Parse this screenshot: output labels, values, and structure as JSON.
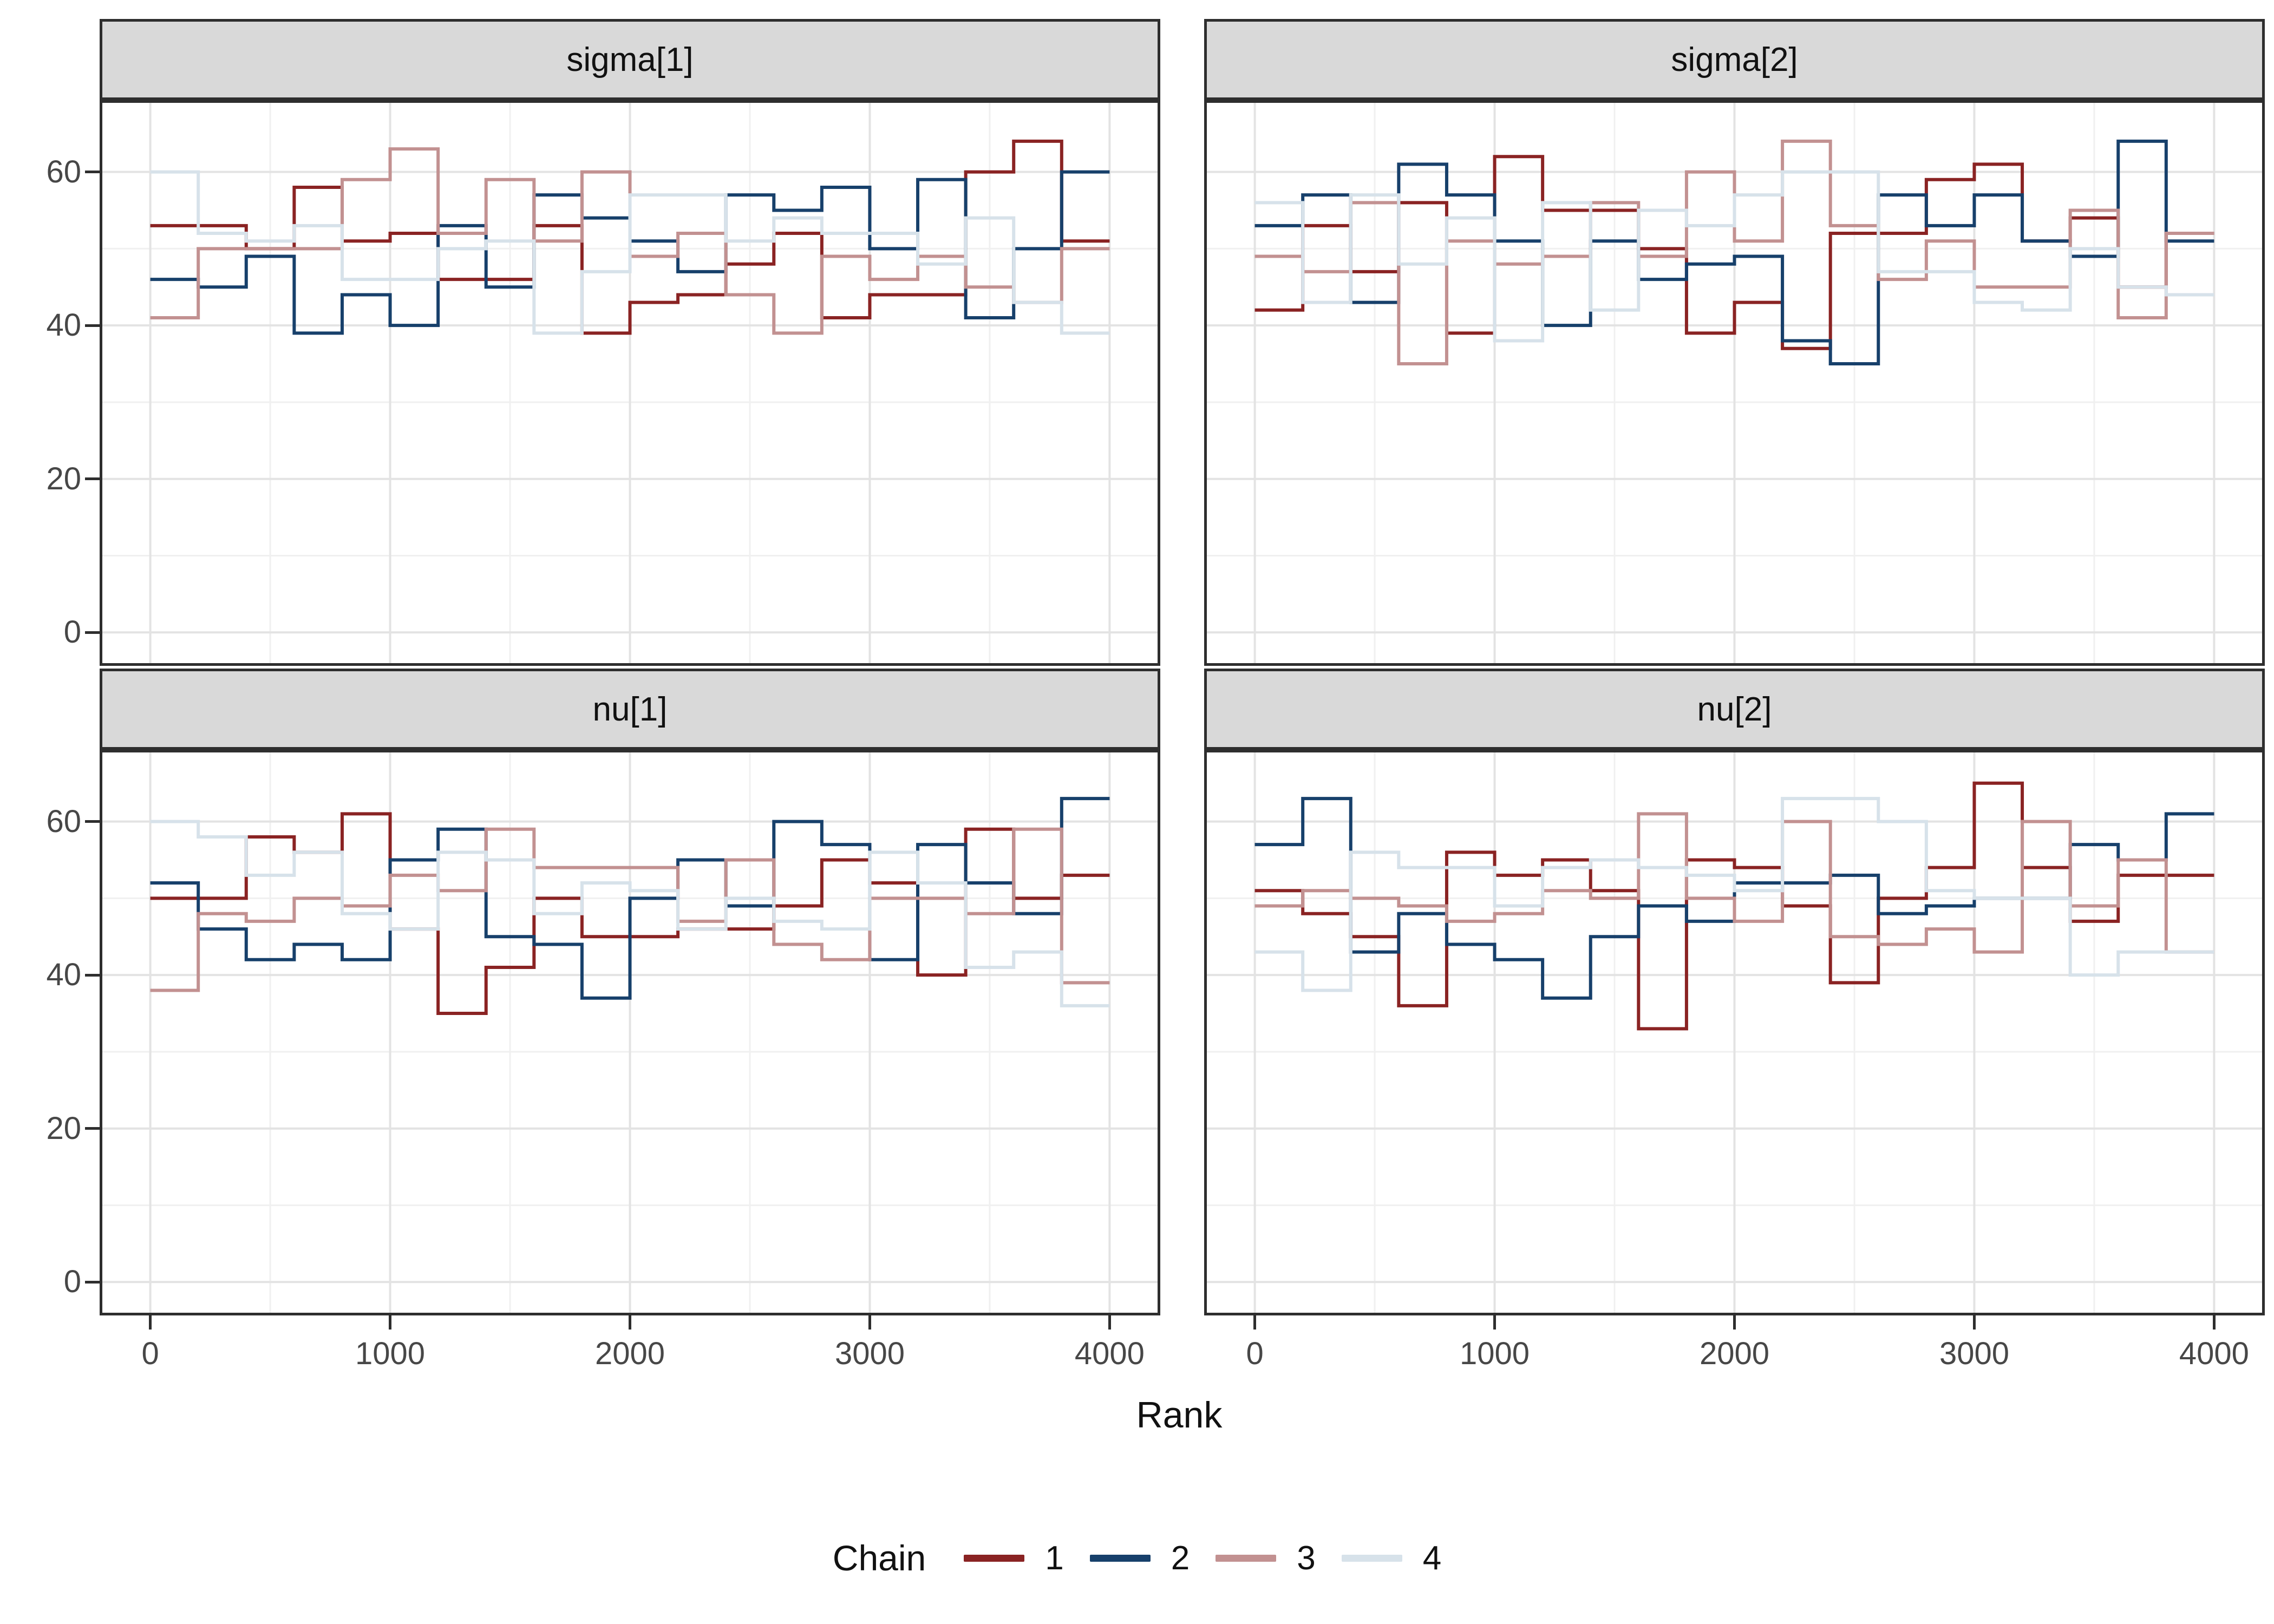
{
  "axes": {
    "x": {
      "label": "Rank",
      "tick_labels": [
        "0",
        "1000",
        "2000",
        "3000",
        "4000"
      ],
      "tick_values": [
        0,
        1000,
        2000,
        3000,
        4000
      ],
      "minor_values": [
        500,
        1500,
        2500,
        3500
      ],
      "domain": [
        -200,
        4200
      ]
    },
    "y": {
      "tick_labels": [
        "0",
        "20",
        "40",
        "60"
      ],
      "tick_values": [
        0,
        20,
        40,
        60
      ],
      "minor_values": [
        10,
        30,
        50
      ],
      "domain": [
        -4,
        69
      ]
    }
  },
  "legend": {
    "title": "Chain",
    "entries": [
      {
        "label": "1",
        "color": "#8A2323"
      },
      {
        "label": "2",
        "color": "#17406B"
      },
      {
        "label": "3",
        "color": "#C29191"
      },
      {
        "label": "4",
        "color": "#D7E2EA"
      }
    ]
  },
  "style": {
    "grid_major": "#E3E3E3",
    "grid_minor": "#F0F0F0",
    "panel_border": "#2E2E2E",
    "strip_bg": "#D9D9D9",
    "tick_text": "#474747",
    "line_width": 6
  },
  "chart_data": {
    "type": "step-histogram rank overlay (line)",
    "xlabel": "Rank",
    "bin_width": 200,
    "bin_edges": [
      0,
      200,
      400,
      600,
      800,
      1000,
      1200,
      1400,
      1600,
      1800,
      2000,
      2200,
      2400,
      2600,
      2800,
      3000,
      3200,
      3400,
      3600,
      3800,
      4000
    ],
    "xlim": [
      -200,
      4200
    ],
    "ylim": [
      -4,
      69
    ],
    "grid": true,
    "legend_position": "bottom",
    "facets": [
      {
        "title": "sigma[1]",
        "series": [
          {
            "chain": "1",
            "values": [
              53,
              53,
              50,
              58,
              51,
              52,
              46,
              46,
              53,
              39,
              43,
              44,
              48,
              52,
              41,
              44,
              44,
              60,
              64,
              51
            ]
          },
          {
            "chain": "2",
            "values": [
              46,
              45,
              49,
              39,
              44,
              40,
              53,
              45,
              57,
              54,
              51,
              47,
              57,
              55,
              58,
              50,
              59,
              41,
              50,
              60
            ]
          },
          {
            "chain": "3",
            "values": [
              41,
              50,
              50,
              50,
              59,
              63,
              52,
              59,
              51,
              60,
              49,
              52,
              44,
              39,
              49,
              46,
              49,
              45,
              43,
              50
            ]
          },
          {
            "chain": "4",
            "values": [
              60,
              52,
              51,
              53,
              46,
              46,
              50,
              51,
              39,
              47,
              57,
              57,
              51,
              54,
              52,
              52,
              48,
              54,
              43,
              39
            ]
          }
        ]
      },
      {
        "title": "sigma[2]",
        "series": [
          {
            "chain": "1",
            "values": [
              42,
              53,
              47,
              56,
              39,
              62,
              55,
              55,
              50,
              39,
              43,
              37,
              52,
              52,
              59,
              61,
              51,
              54,
              45,
              52
            ]
          },
          {
            "chain": "2",
            "values": [
              53,
              57,
              43,
              61,
              57,
              51,
              40,
              51,
              46,
              48,
              49,
              38,
              35,
              57,
              53,
              57,
              51,
              49,
              64,
              51
            ]
          },
          {
            "chain": "3",
            "values": [
              49,
              47,
              56,
              35,
              51,
              48,
              49,
              56,
              49,
              60,
              51,
              64,
              53,
              46,
              51,
              45,
              45,
              55,
              41,
              52
            ]
          },
          {
            "chain": "4",
            "values": [
              56,
              43,
              57,
              48,
              54,
              38,
              56,
              42,
              55,
              53,
              57,
              60,
              60,
              47,
              47,
              43,
              42,
              50,
              45,
              44
            ]
          }
        ]
      },
      {
        "title": "nu[1]",
        "series": [
          {
            "chain": "1",
            "values": [
              50,
              50,
              58,
              56,
              61,
              46,
              35,
              41,
              50,
              45,
              45,
              46,
              46,
              49,
              55,
              52,
              40,
              59,
              50,
              53
            ]
          },
          {
            "chain": "2",
            "values": [
              52,
              46,
              42,
              44,
              42,
              55,
              59,
              45,
              44,
              37,
              50,
              55,
              49,
              60,
              57,
              42,
              57,
              52,
              48,
              63
            ]
          },
          {
            "chain": "3",
            "values": [
              38,
              48,
              47,
              50,
              49,
              53,
              51,
              59,
              54,
              54,
              54,
              47,
              55,
              44,
              42,
              50,
              50,
              48,
              59,
              39
            ]
          },
          {
            "chain": "4",
            "values": [
              60,
              58,
              53,
              56,
              48,
              46,
              56,
              55,
              48,
              52,
              51,
              46,
              50,
              47,
              46,
              56,
              52,
              41,
              43,
              36
            ]
          }
        ]
      },
      {
        "title": "nu[2]",
        "series": [
          {
            "chain": "1",
            "values": [
              51,
              48,
              45,
              36,
              56,
              53,
              55,
              51,
              33,
              55,
              54,
              49,
              39,
              50,
              54,
              65,
              54,
              47,
              53,
              53
            ]
          },
          {
            "chain": "2",
            "values": [
              57,
              63,
              43,
              48,
              44,
              42,
              37,
              45,
              49,
              47,
              52,
              52,
              53,
              48,
              49,
              50,
              50,
              57,
              55,
              61
            ]
          },
          {
            "chain": "3",
            "values": [
              49,
              51,
              50,
              49,
              47,
              48,
              51,
              50,
              61,
              50,
              47,
              60,
              45,
              44,
              46,
              43,
              60,
              49,
              55,
              43
            ]
          },
          {
            "chain": "4",
            "values": [
              43,
              38,
              56,
              54,
              54,
              49,
              54,
              55,
              54,
              53,
              51,
              63,
              63,
              60,
              51,
              50,
              50,
              40,
              43,
              43
            ]
          }
        ]
      }
    ]
  }
}
